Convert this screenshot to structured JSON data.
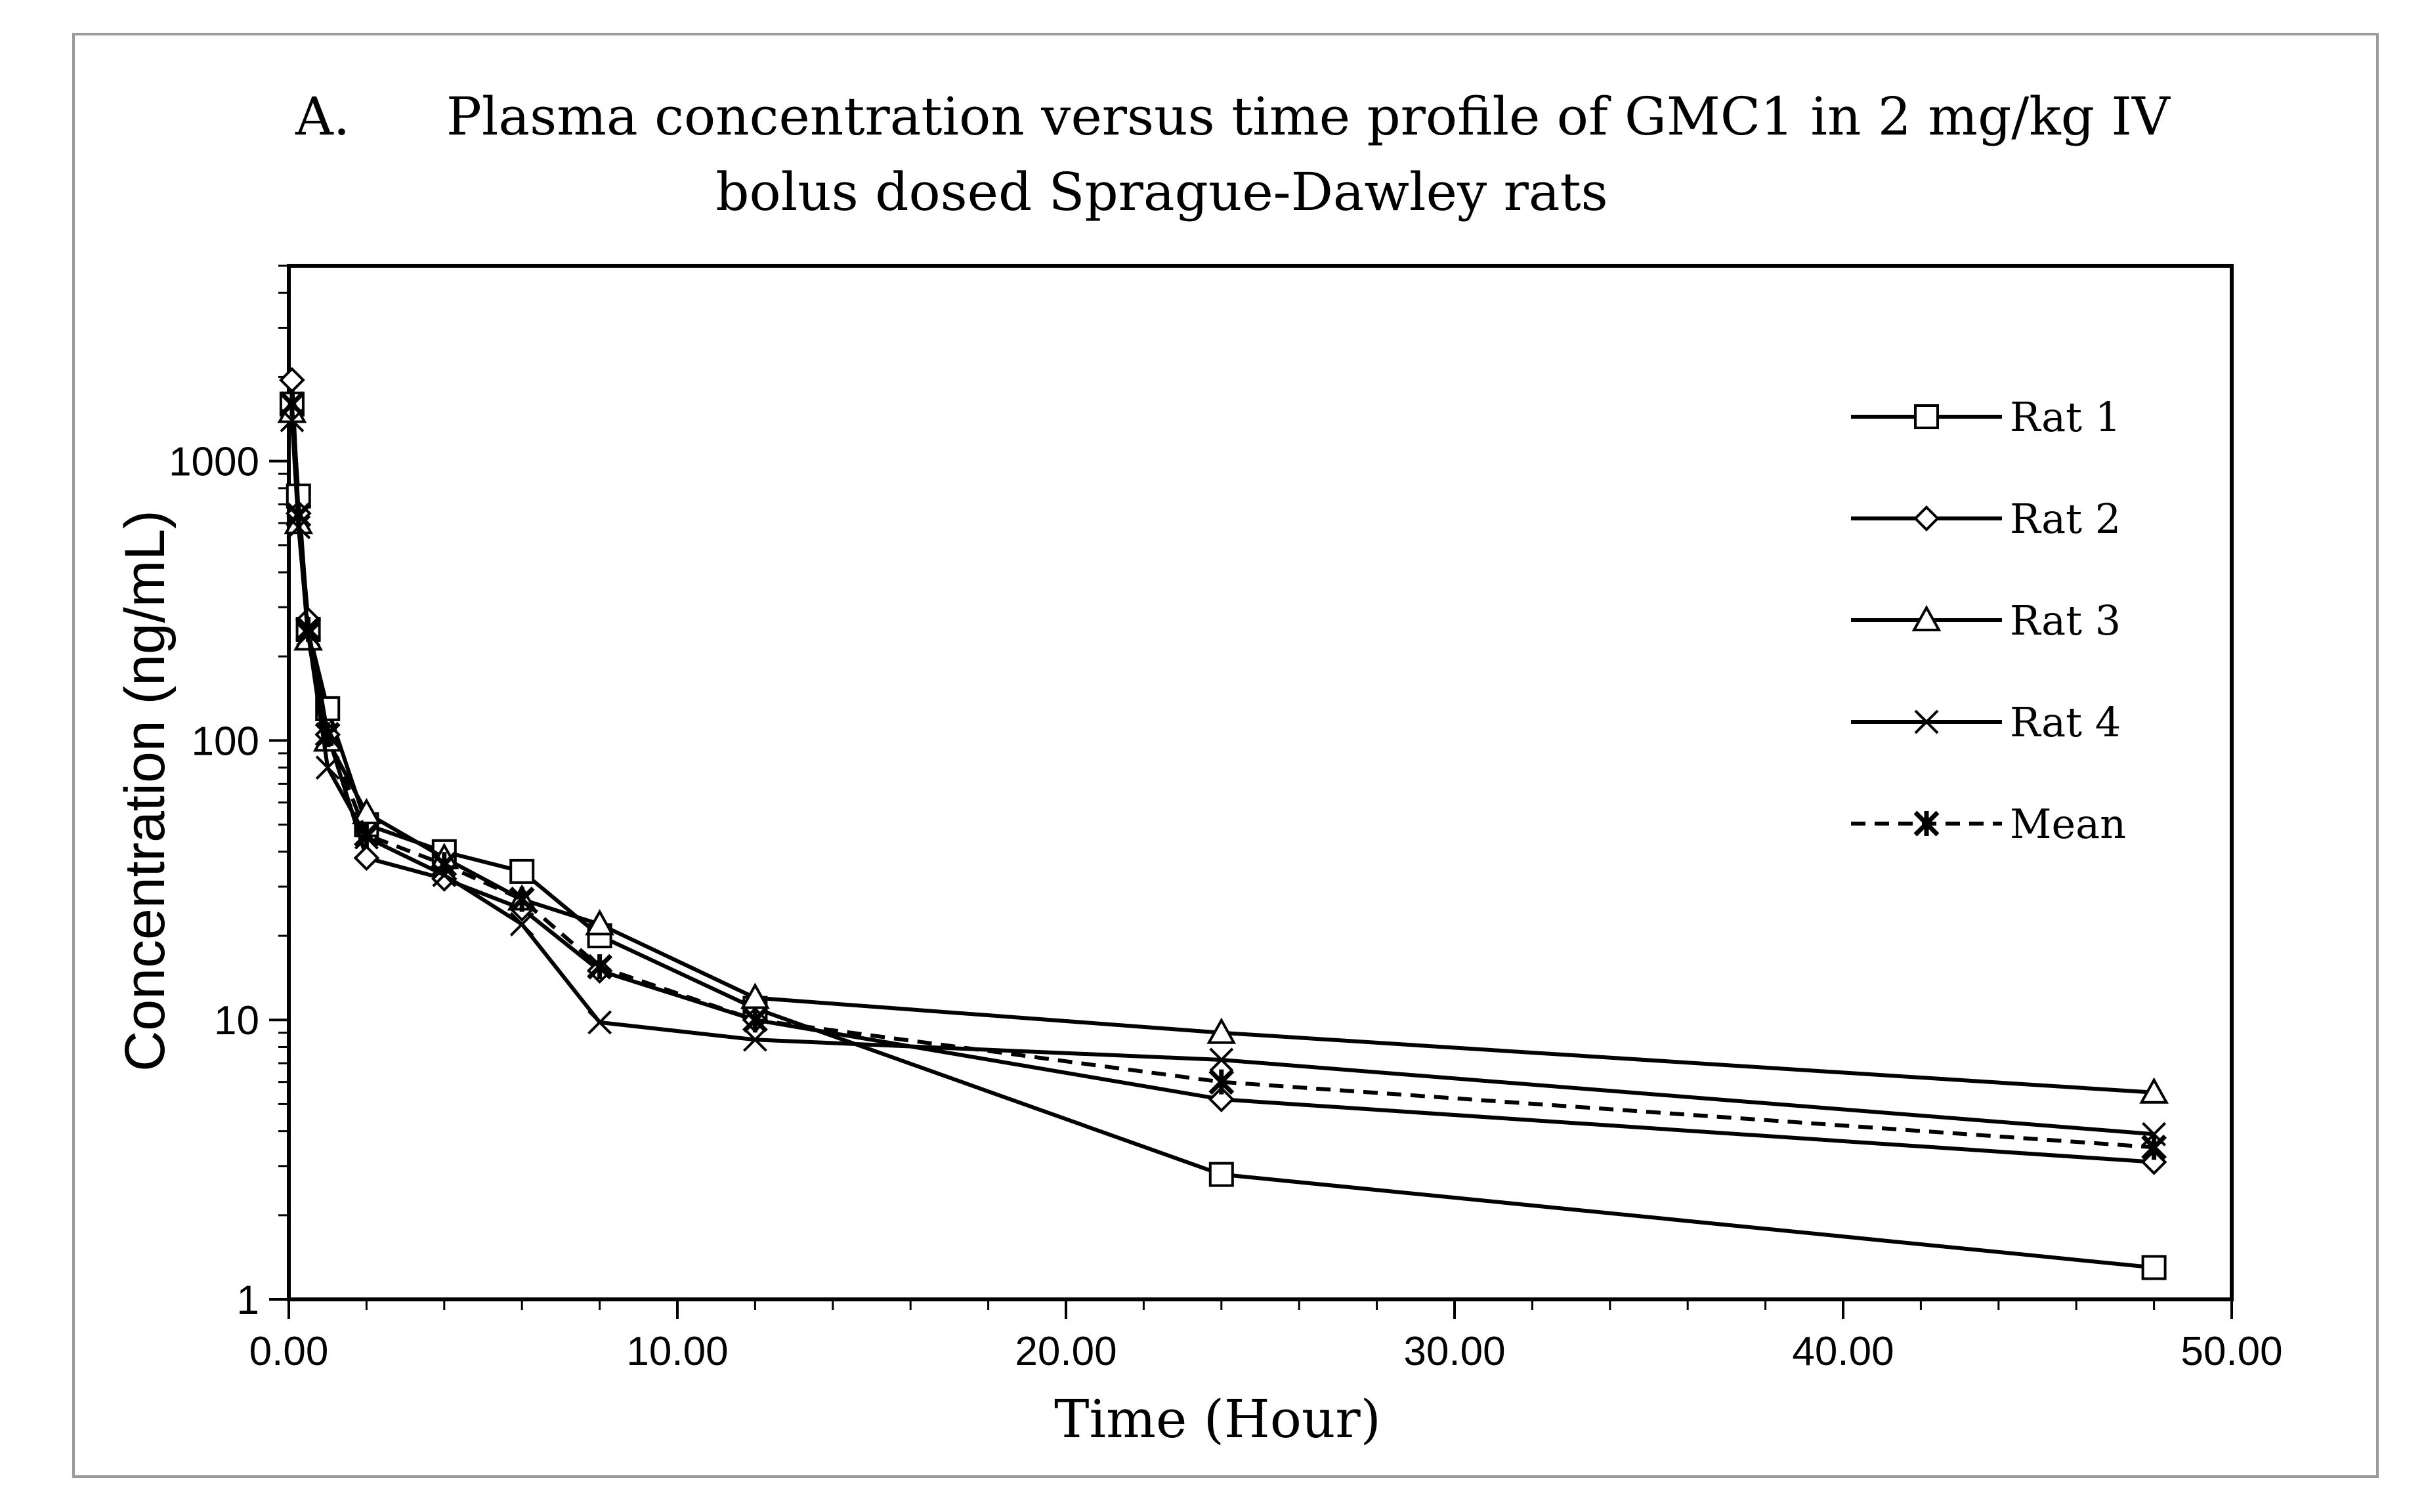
{
  "chart_data": {
    "type": "line",
    "title_prefix": "A.",
    "title_line1": "Plasma concentration versus time profile of GMC1 in 2 mg/kg IV",
    "title_line2": "bolus dosed Sprague-Dawley rats",
    "xlabel": "Time (Hour)",
    "ylabel": "Concentration (ng/mL)",
    "xlim": [
      0,
      50
    ],
    "ylim": [
      1,
      5000
    ],
    "yscale": "log",
    "x_ticks": [
      0,
      10,
      20,
      30,
      40,
      50
    ],
    "x_tick_labels": [
      "0.00",
      "10.00",
      "20.00",
      "30.00",
      "40.00",
      "50.00"
    ],
    "y_ticks": [
      1,
      10,
      100,
      1000
    ],
    "y_tick_labels": [
      "1",
      "10",
      "100",
      "1000"
    ],
    "legend_position": "top-right",
    "series": [
      {
        "name": "Rat 1",
        "marker": "square",
        "dash": false,
        "x": [
          0.083,
          0.25,
          0.5,
          1,
          2,
          4,
          6,
          8,
          12,
          24,
          48
        ],
        "y": [
          1600,
          750,
          250,
          130,
          50,
          40,
          34,
          20,
          11,
          2.8,
          1.3
        ]
      },
      {
        "name": "Rat 2",
        "marker": "diamond",
        "dash": false,
        "x": [
          0.083,
          0.25,
          0.5,
          1,
          2,
          4,
          6,
          8,
          12,
          24,
          48
        ],
        "y": [
          1950,
          650,
          270,
          105,
          38,
          32,
          25,
          15,
          10,
          5.2,
          3.1
        ]
      },
      {
        "name": "Rat 3",
        "marker": "triangle",
        "dash": false,
        "x": [
          0.083,
          0.25,
          0.5,
          1,
          2,
          4,
          6,
          8,
          12,
          24,
          48
        ],
        "y": [
          1500,
          600,
          230,
          100,
          55,
          38,
          27,
          22,
          12,
          9,
          5.5
        ]
      },
      {
        "name": "Rat 4",
        "marker": "x",
        "dash": false,
        "x": [
          0.083,
          0.25,
          0.5,
          1,
          2,
          4,
          6,
          8,
          12,
          24,
          48
        ],
        "y": [
          1400,
          580,
          240,
          80,
          45,
          33,
          22,
          9.8,
          8.5,
          7.2,
          3.9
        ]
      },
      {
        "name": "Mean",
        "marker": "asterisk",
        "dash": true,
        "x": [
          0.083,
          0.25,
          0.5,
          1,
          2,
          4,
          6,
          8,
          12,
          24,
          48
        ],
        "y": [
          1600,
          640,
          250,
          105,
          46,
          36,
          27,
          15.5,
          10,
          6,
          3.5
        ]
      }
    ]
  }
}
